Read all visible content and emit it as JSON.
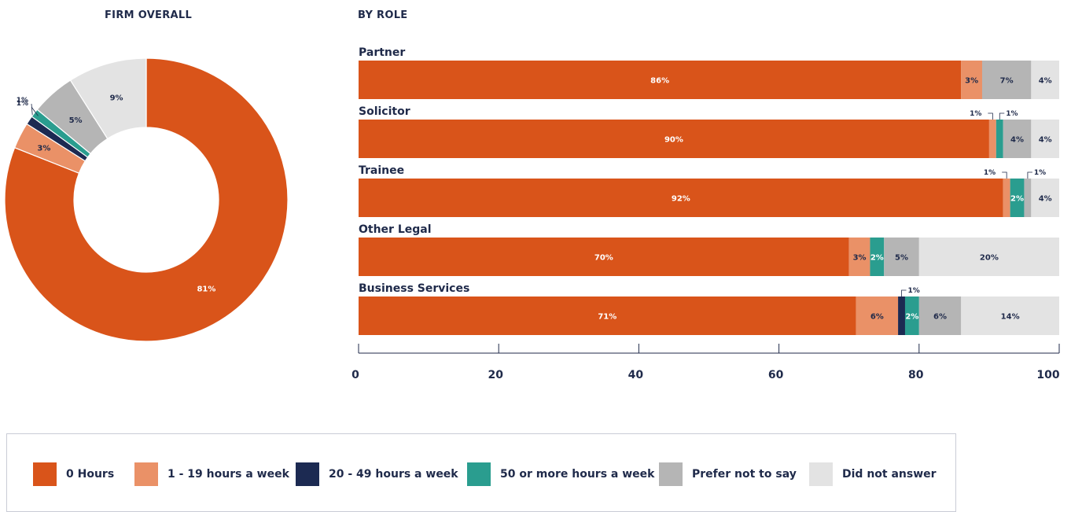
{
  "titles": {
    "donut": "FIRM OVERALL",
    "bars": "BY ROLE"
  },
  "colors": {
    "zero": "#d9541a",
    "low": "#ea9167",
    "mid": "#1c2a52",
    "high": "#2a9d8f",
    "prefer": "#b5b5b5",
    "na": "#e3e3e3"
  },
  "legend": [
    {
      "label": "0 Hours",
      "color": "#d9541a"
    },
    {
      "label": "1 - 19 hours a week",
      "color": "#ea9167"
    },
    {
      "label": "20 - 49 hours a week",
      "color": "#1c2a52"
    },
    {
      "label": "50 or more hours a week",
      "color": "#2a9d8f"
    },
    {
      "label": "Prefer not to say",
      "color": "#b5b5b5"
    },
    {
      "label": "Did not answer",
      "color": "#e3e3e3"
    }
  ],
  "chart_data": [
    {
      "type": "pie",
      "title": "FIRM OVERALL",
      "categories": [
        "0 Hours",
        "1 - 19 hours a week",
        "20 - 49 hours a week",
        "50 or more hours a week",
        "Prefer not to say",
        "Did not answer"
      ],
      "values": [
        81,
        3,
        1,
        1,
        5,
        9
      ],
      "labels": [
        "81%",
        "3%",
        "1%",
        "1%",
        "5%",
        "9%"
      ]
    },
    {
      "type": "bar",
      "orientation": "horizontal",
      "stacked": true,
      "title": "BY ROLE",
      "categories": [
        "Partner",
        "Solicitor",
        "Trainee",
        "Other Legal",
        "Business Services"
      ],
      "xlim": [
        0,
        100
      ],
      "xticks": [
        0,
        20,
        40,
        60,
        80,
        100
      ],
      "series": [
        {
          "name": "0 Hours",
          "values": [
            86,
            90,
            92,
            70,
            71
          ]
        },
        {
          "name": "1 - 19 hours a week",
          "values": [
            3,
            1,
            1,
            3,
            6
          ]
        },
        {
          "name": "20 - 49 hours a week",
          "values": [
            0,
            0,
            0,
            0,
            1
          ]
        },
        {
          "name": "50 or more hours a week",
          "values": [
            0,
            1,
            2,
            2,
            2
          ]
        },
        {
          "name": "Prefer not to say",
          "values": [
            7,
            4,
            1,
            5,
            6
          ]
        },
        {
          "name": "Did not answer",
          "values": [
            4,
            4,
            4,
            20,
            14
          ]
        }
      ]
    }
  ]
}
